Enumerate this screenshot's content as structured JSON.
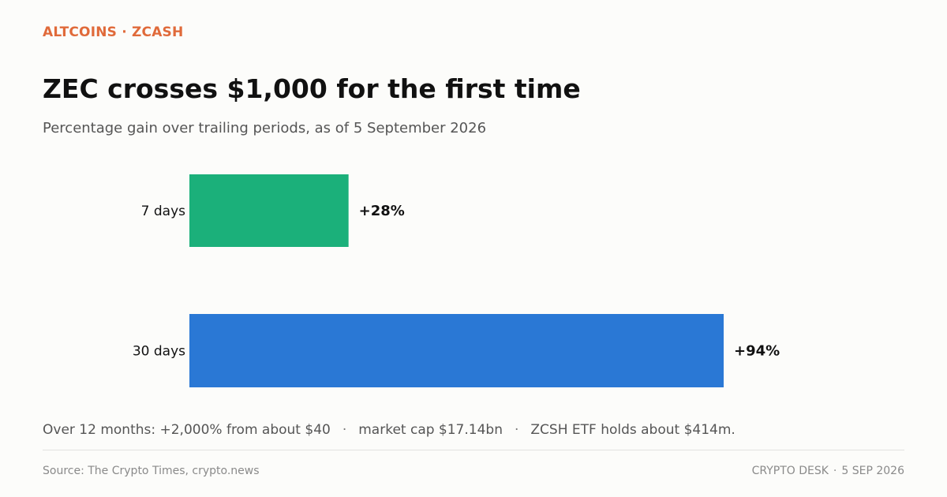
{
  "kicker": "ALTCOINS · ZCASH",
  "headline": "ZEC crosses $1,000 for the first time",
  "subhead": "Percentage gain over trailing periods, as of 5 September 2026",
  "colors": {
    "kicker": "#e06a3a",
    "bar_7d": "#1bb07a",
    "bar_30d": "#2a78d5"
  },
  "chart_data": {
    "type": "bar",
    "orientation": "horizontal",
    "categories": [
      "7 days",
      "30 days"
    ],
    "values": [
      28,
      94
    ],
    "value_labels": [
      "+28%",
      "+94%"
    ],
    "unit": "%",
    "xlim": [
      0,
      94
    ],
    "grid": false,
    "legend": "none"
  },
  "note": {
    "parts": [
      "Over 12 months: +2,000% from about $40",
      "market cap $17.14bn",
      "ZCSH ETF holds about $414m."
    ],
    "separator": "·"
  },
  "footer": {
    "source": "Source: The Crypto Times, crypto.news",
    "desk": "CRYPTO DESK",
    "separator": "·",
    "date": "5 SEP 2026"
  }
}
